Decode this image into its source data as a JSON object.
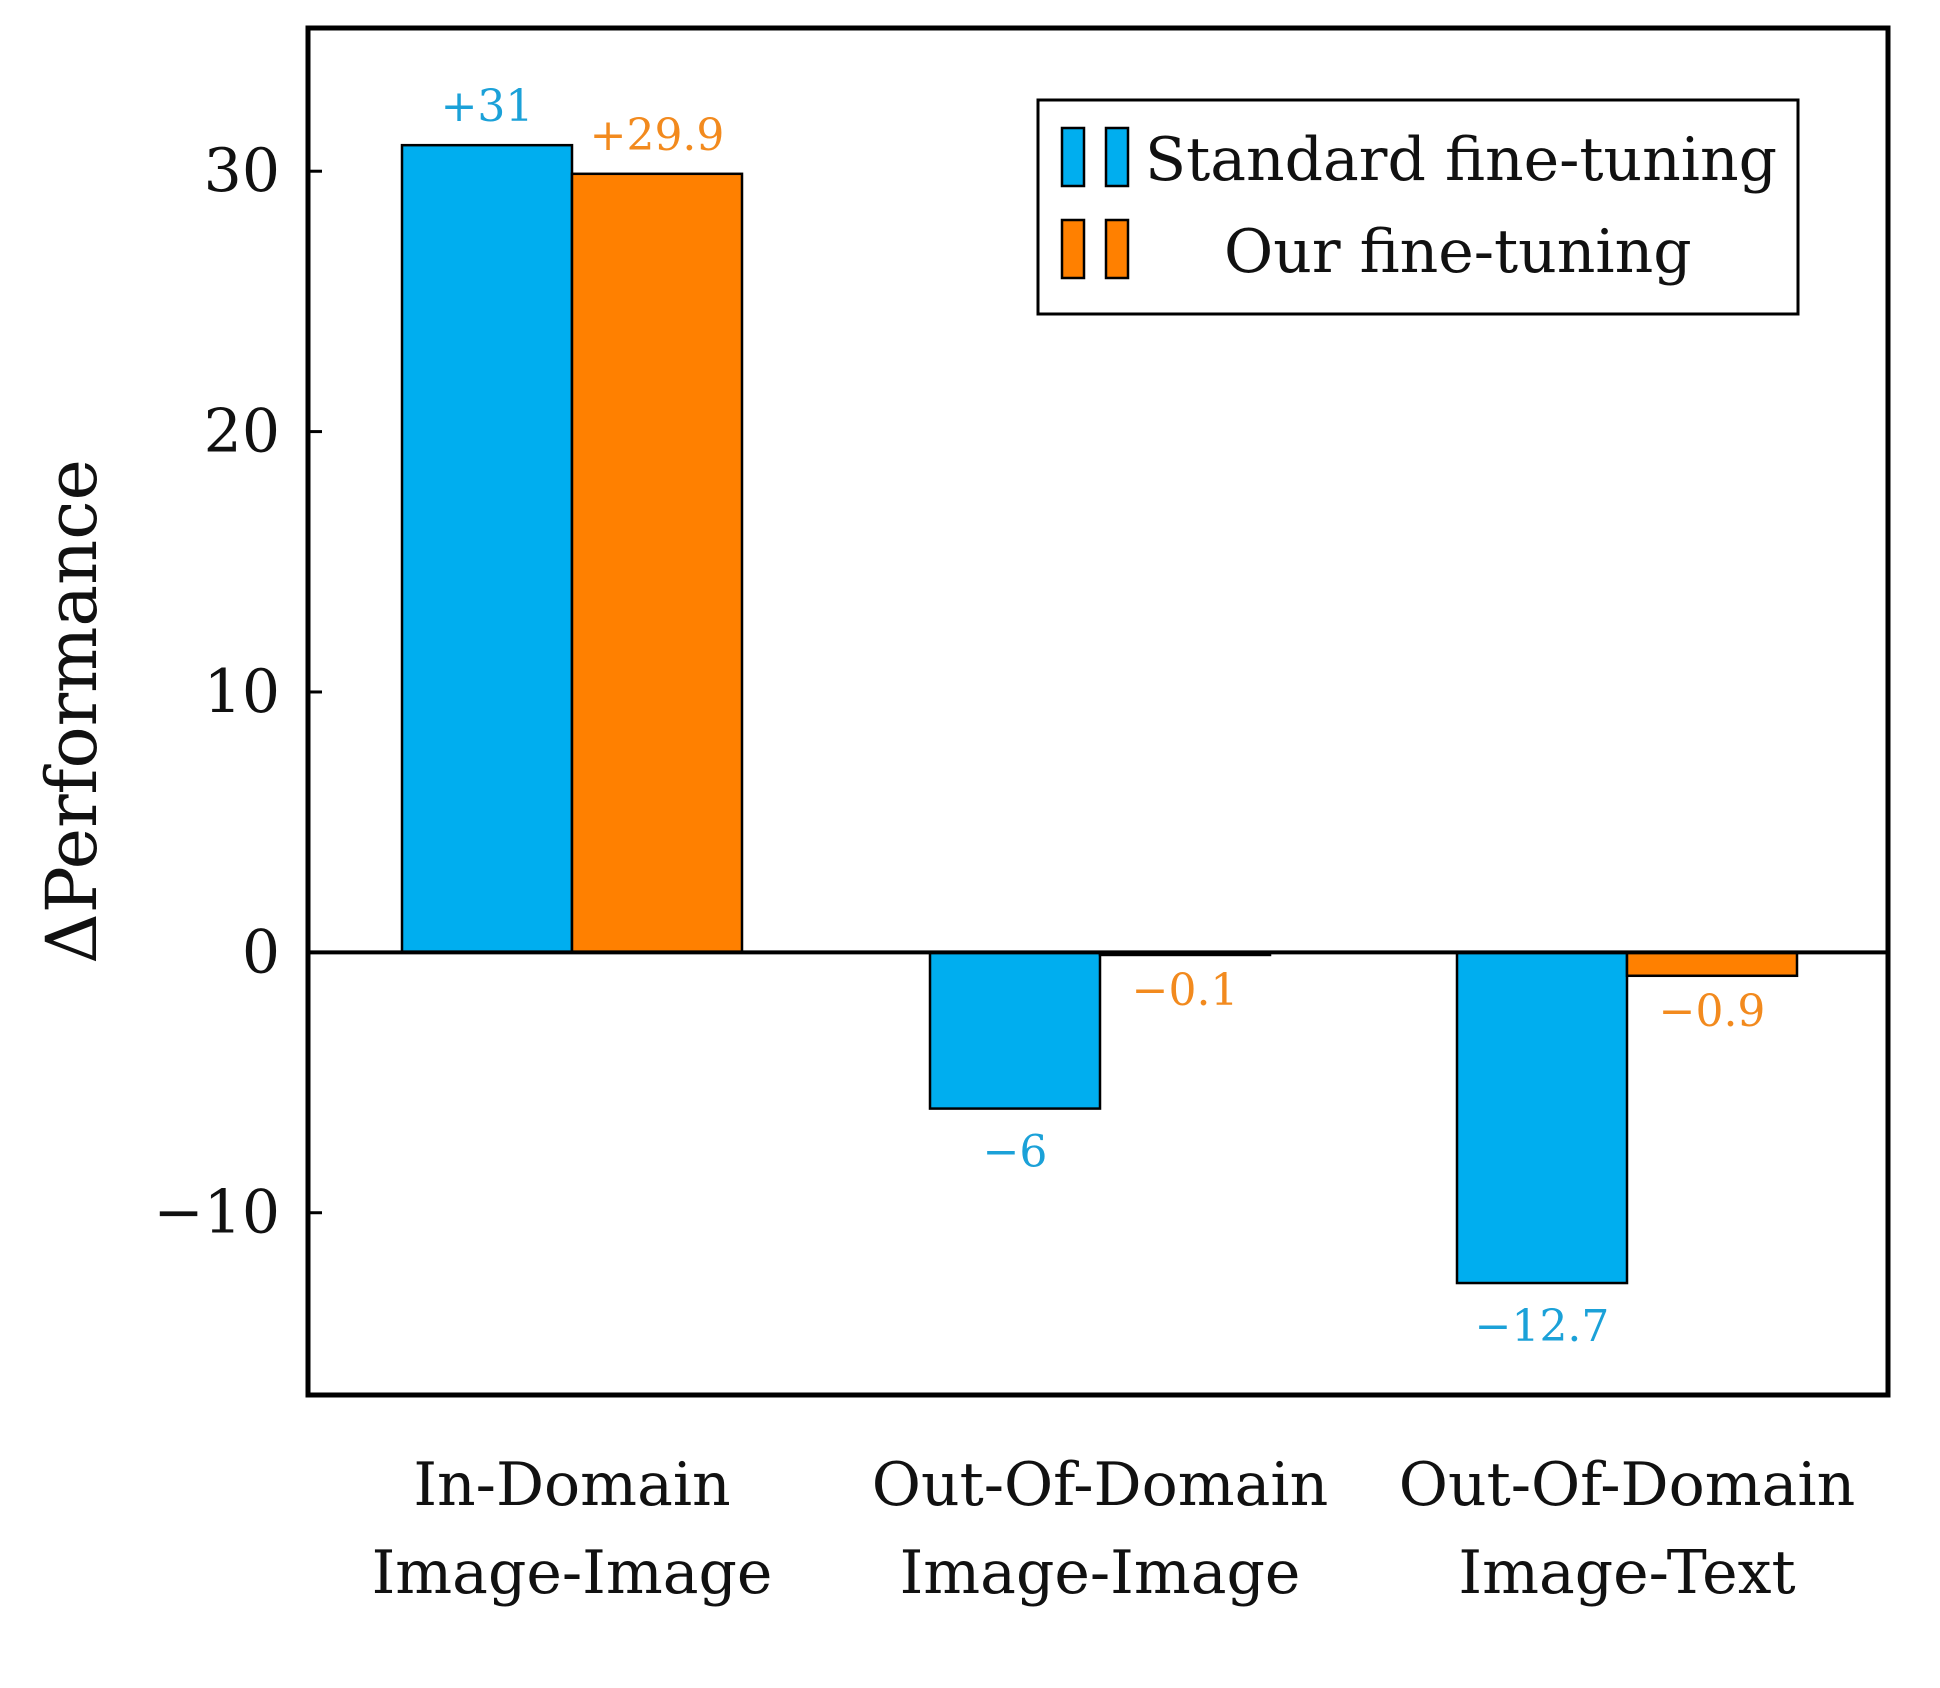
{
  "chart_data": {
    "type": "bar",
    "title": "",
    "xlabel": "",
    "ylabel": "ΔPerformance",
    "ylim": [
      -17,
      35.5
    ],
    "yticks": [
      {
        "value": 30,
        "label": "30"
      },
      {
        "value": 20,
        "label": "20"
      },
      {
        "value": 10,
        "label": "10"
      },
      {
        "value": 0,
        "label": "0"
      },
      {
        "value": -10,
        "label": "−10"
      }
    ],
    "categories": [
      [
        "In-Domain",
        "Image-Image"
      ],
      [
        "Out-Of-Domain",
        "Image-Image"
      ],
      [
        "Out-Of-Domain",
        "Image-Text"
      ]
    ],
    "series": [
      {
        "name": "Standard fine-tuning",
        "color": "#00AEEF",
        "label_color": "#1BA1D8",
        "values": [
          31,
          -6,
          -12.7
        ],
        "labels": [
          "+31",
          "−6",
          "−12.7"
        ]
      },
      {
        "name": "Our fine-tuning",
        "color": "#FF8000",
        "label_color": "#F28A1E",
        "values": [
          29.9,
          -0.1,
          -0.9
        ],
        "labels": [
          "+29.9",
          "−0.1",
          "−0.9"
        ]
      }
    ],
    "grid": false,
    "legend_position": "top-right",
    "zero_line": true
  }
}
